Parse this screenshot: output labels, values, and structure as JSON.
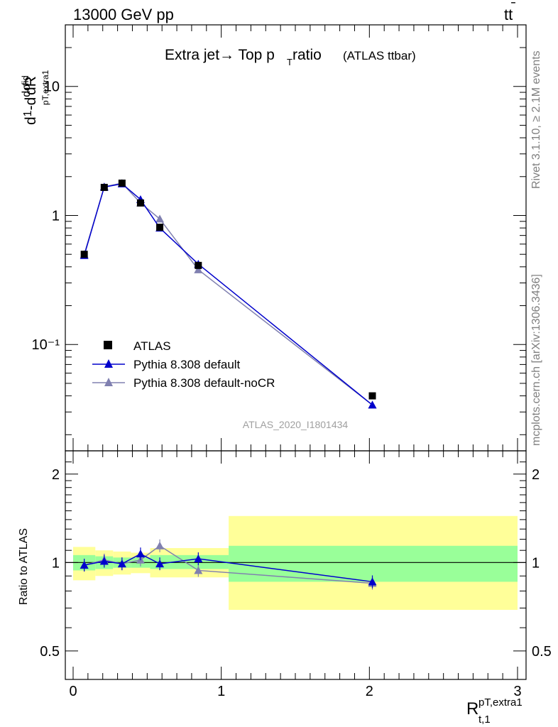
{
  "header": {
    "energy": "13000 GeV pp",
    "process_main": "tt",
    "process_bar": "̄"
  },
  "side": {
    "rivet": "Rivet 3.1.10, ≥ 2.1M events",
    "mcplots": "mcplots.cern.ch [arXiv:1306.3436]"
  },
  "title": {
    "main": "Extra jet→ Top p",
    "sub": "T",
    "rest": " ratio",
    "small": "(ATLAS ttbar)"
  },
  "ylabel": "d¹/σ dσ/dR",
  "watermark": "ATLAS_2020_I1801434",
  "xlabel": {
    "main": "R",
    "sup": "pT,extra1",
    "sub": "t,1"
  },
  "ratio_ylabel": "Ratio to ATLAS",
  "legend": [
    "ATLAS",
    "Pythia 8.308 default",
    "Pythia 8.308 default-noCR"
  ],
  "colors": {
    "data": "#000000",
    "default": "#0000cc",
    "nocr": "#8080b0",
    "band_inner": "#99ff99",
    "band_outer": "#ffff99"
  },
  "chart_data": {
    "type": "line",
    "xlim": [
      -0.05,
      3.0
    ],
    "main_ylim": [
      0.015,
      30
    ],
    "main_yscale": "log",
    "main_yticks": [
      {
        "v": 0.1,
        "label": "10⁻¹"
      },
      {
        "v": 1,
        "label": "1"
      },
      {
        "v": 10,
        "label": "10"
      }
    ],
    "ratio_ylim": [
      0.4,
      2.4
    ],
    "ratio_yticks": [
      {
        "v": 0.5,
        "label": "0.5"
      },
      {
        "v": 1,
        "label": "1"
      },
      {
        "v": 2,
        "label": "2"
      }
    ],
    "xticks": [
      0,
      1,
      2,
      3
    ],
    "series": [
      {
        "name": "ATLAS",
        "x": [
          0.075,
          0.21,
          0.33,
          0.455,
          0.585,
          0.845,
          2.02
        ],
        "y": [
          0.5,
          1.65,
          1.78,
          1.25,
          0.81,
          0.41,
          0.04
        ]
      },
      {
        "name": "Pythia 8.308 default",
        "x": [
          0.075,
          0.21,
          0.33,
          0.455,
          0.585,
          0.845,
          2.02
        ],
        "y": [
          0.49,
          1.66,
          1.76,
          1.33,
          0.8,
          0.42,
          0.034
        ],
        "ratio": [
          0.98,
          1.01,
          0.99,
          1.07,
          0.99,
          1.03,
          0.86
        ]
      },
      {
        "name": "Pythia 8.308 default-noCR",
        "x": [
          0.075,
          0.21,
          0.33,
          0.455,
          0.585,
          0.845,
          2.02
        ],
        "y": [
          0.5,
          1.67,
          1.78,
          1.25,
          0.94,
          0.38,
          0.034
        ],
        "ratio": [
          0.98,
          1.02,
          0.99,
          1.02,
          1.14,
          0.94,
          0.85
        ]
      }
    ],
    "bands": [
      {
        "x": [
          0.0,
          0.15
        ],
        "inner": [
          0.94,
          1.06
        ],
        "outer": [
          0.87,
          1.13
        ]
      },
      {
        "x": [
          0.15,
          0.27
        ],
        "inner": [
          0.95,
          1.05
        ],
        "outer": [
          0.9,
          1.1
        ]
      },
      {
        "x": [
          0.27,
          0.39
        ],
        "inner": [
          0.96,
          1.04
        ],
        "outer": [
          0.91,
          1.09
        ]
      },
      {
        "x": [
          0.39,
          0.52
        ],
        "inner": [
          0.96,
          1.04
        ],
        "outer": [
          0.92,
          1.08
        ]
      },
      {
        "x": [
          0.52,
          1.05
        ],
        "inner": [
          0.95,
          1.06
        ],
        "outer": [
          0.89,
          1.12
        ]
      },
      {
        "x": [
          1.05,
          3.0
        ],
        "inner": [
          0.86,
          1.14
        ],
        "outer": [
          0.69,
          1.44
        ]
      }
    ]
  }
}
